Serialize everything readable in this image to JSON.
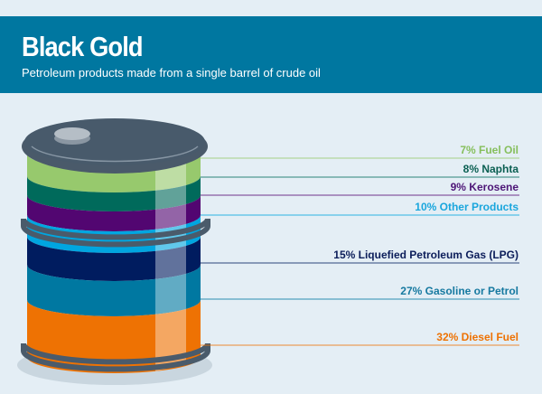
{
  "header": {
    "title": "Black Gold",
    "subtitle": "Petroleum products made from a single barrel of crude oil"
  },
  "chart_data": {
    "type": "bar",
    "title": "Black Gold",
    "subtitle": "Petroleum products made from a single barrel of crude oil",
    "unit": "%",
    "categories": [
      "Fuel Oil",
      "Naphta",
      "Kerosene",
      "Other Products",
      "Liquefied Petroleum Gas (LPG)",
      "Gasoline or Petrol",
      "Diesel Fuel"
    ],
    "values": [
      7,
      8,
      9,
      10,
      15,
      27,
      32
    ],
    "labels": [
      "7% Fuel Oil",
      "8% Naphta",
      "9% Kerosene",
      "10% Other Products",
      "15% Liquefied Petroleum Gas (LPG)",
      "27% Gasoline or Petrol",
      "32% Diesel Fuel"
    ],
    "colors": [
      "#97c96d",
      "#006a5b",
      "#520671",
      "#00a6e0",
      "#001c5f",
      "#0078a1",
      "#ee7203"
    ],
    "label_colors": [
      "#86bf5c",
      "#0a5f52",
      "#4d1677",
      "#1aa6dd",
      "#0b1d5a",
      "#1679a0",
      "#ee7203"
    ]
  }
}
